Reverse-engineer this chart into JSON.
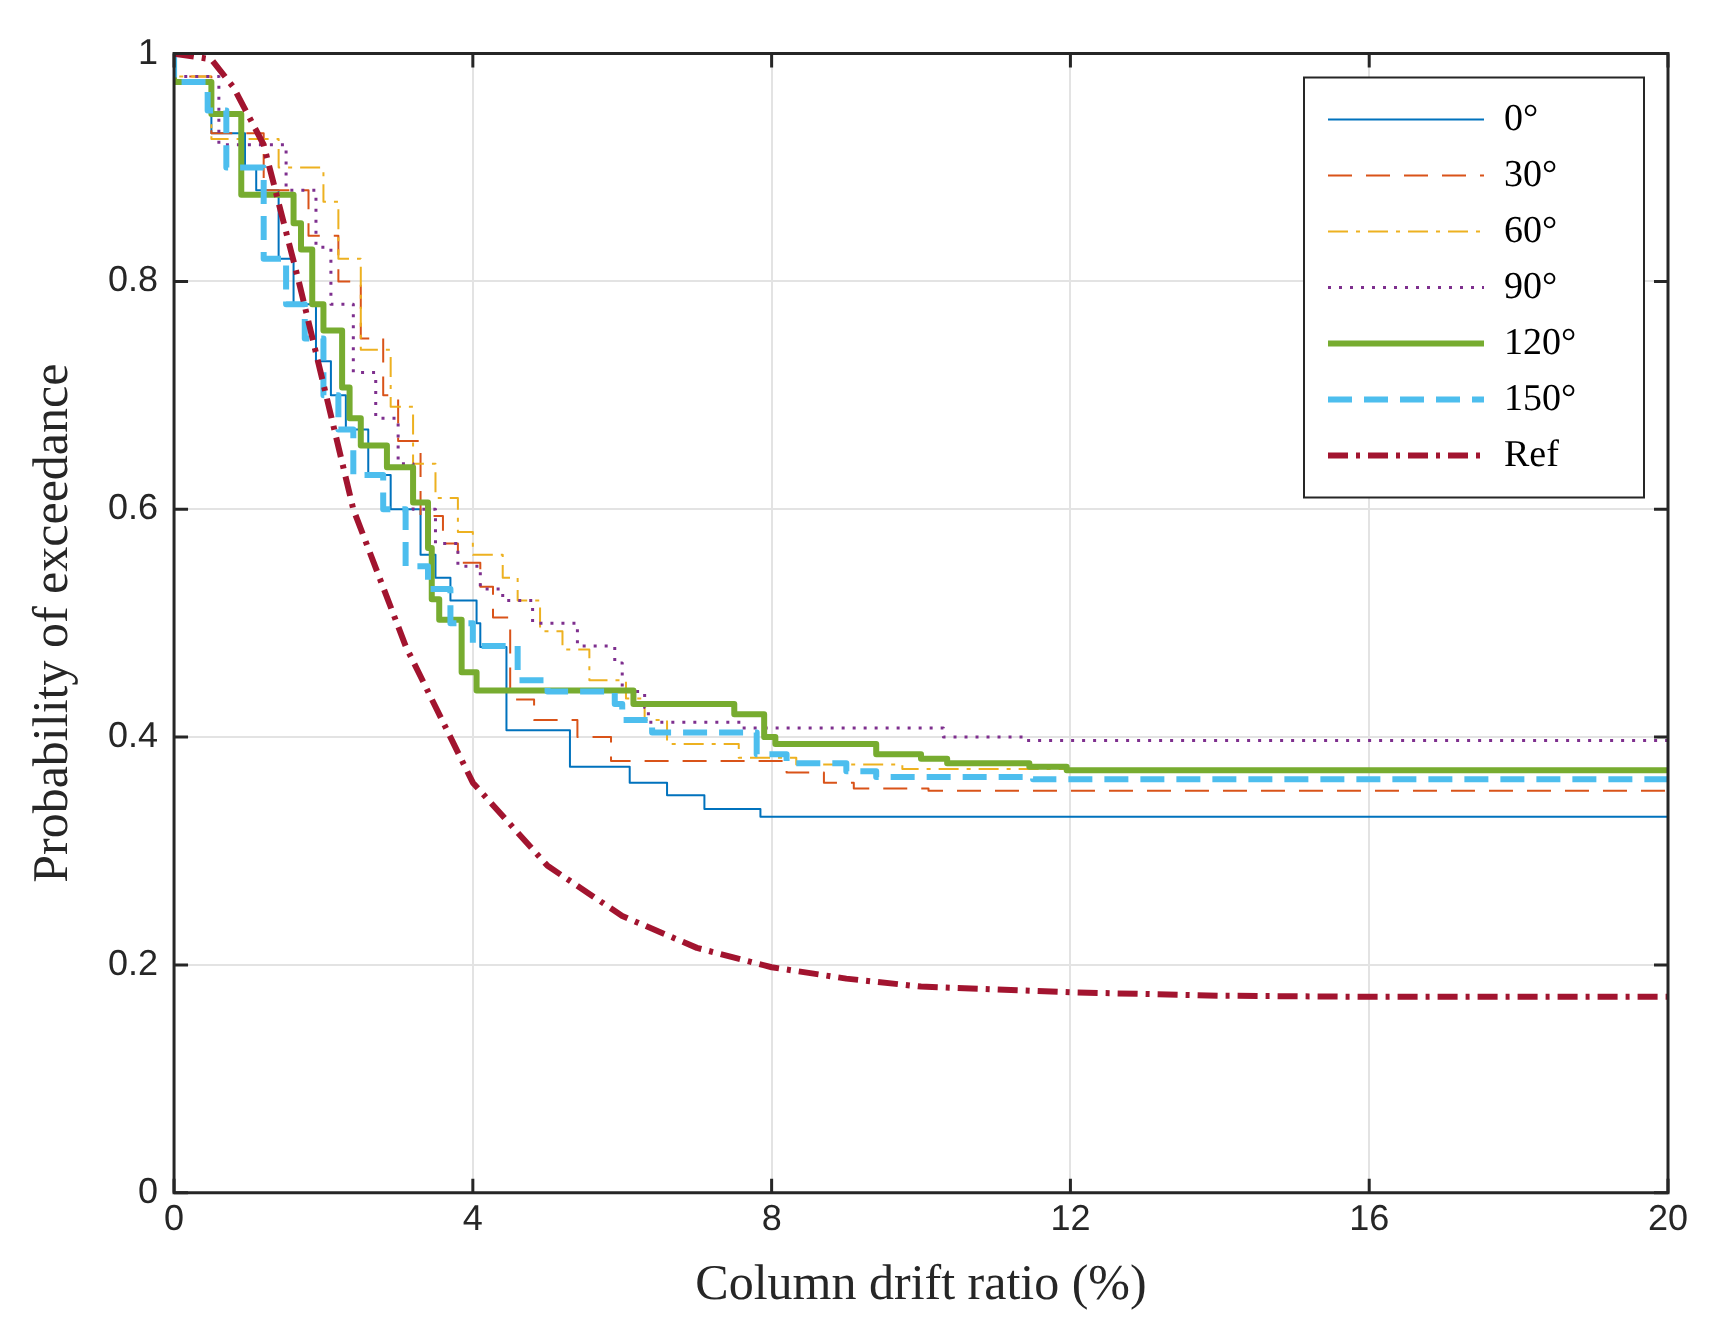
{
  "chart_data": {
    "type": "step",
    "xlabel": "Column drift ratio (%)",
    "ylabel": "Probability of exceedance",
    "xlim": [
      0,
      20
    ],
    "xticks": [
      0,
      4,
      8,
      12,
      16,
      20
    ],
    "ylim": [
      0,
      1
    ],
    "yticks": [
      0,
      0.2,
      0.4,
      0.6,
      0.8,
      1
    ],
    "grid": true,
    "legend": "top right",
    "marker": "none",
    "series": [
      {
        "name": "0°",
        "color": "#0072bd",
        "line_style": "solid",
        "x": [
          0,
          0.5,
          0.95,
          1.1,
          1.4,
          1.6,
          1.9,
          2.1,
          2.3,
          2.6,
          2.9,
          3.3,
          3.5,
          3.7,
          4.05,
          4.1,
          4.45,
          5.3,
          6.1,
          6.6,
          7.1,
          7.85,
          9.0,
          20
        ],
        "values": [
          1,
          0.975,
          0.93,
          0.9,
          0.88,
          0.82,
          0.78,
          0.73,
          0.7,
          0.67,
          0.63,
          0.6,
          0.56,
          0.54,
          0.52,
          0.5,
          0.479,
          0.406,
          0.374,
          0.36,
          0.349,
          0.337,
          0.33,
          0.33
        ]
      },
      {
        "name": "30°",
        "color": "#d95319",
        "line_style": "dashed",
        "x": [
          0,
          0.5,
          1.2,
          1.8,
          2.2,
          2.5,
          2.8,
          3.0,
          3.3,
          3.6,
          3.8,
          4.1,
          4.27,
          4.5,
          4.82,
          5.4,
          5.85,
          8.2,
          8.7,
          9.1,
          10.1,
          12,
          20
        ],
        "values": [
          1,
          0.98,
          0.93,
          0.88,
          0.84,
          0.8,
          0.75,
          0.7,
          0.66,
          0.594,
          0.57,
          0.553,
          0.532,
          0.505,
          0.433,
          0.415,
          0.4,
          0.379,
          0.369,
          0.36,
          0.355,
          0.353,
          0.353
        ]
      },
      {
        "name": "60°",
        "color": "#edb120",
        "line_style": "dashed",
        "x": [
          0,
          0.5,
          1.4,
          2.0,
          2.2,
          2.5,
          2.9,
          3.2,
          3.5,
          3.8,
          4.0,
          4.4,
          4.6,
          4.9,
          5.2,
          5.56,
          6.05,
          6.3,
          6.6,
          7.56,
          8.33,
          9.75,
          12,
          20
        ],
        "values": [
          1,
          0.98,
          0.925,
          0.9,
          0.87,
          0.82,
          0.74,
          0.69,
          0.64,
          0.61,
          0.58,
          0.56,
          0.54,
          0.52,
          0.493,
          0.477,
          0.45,
          0.434,
          0.415,
          0.394,
          0.382,
          0.376,
          0.372,
          0.372
        ]
      },
      {
        "name": "90°",
        "color": "#7e2f8e",
        "line_style": "dotted",
        "x": [
          0,
          0.6,
          1.5,
          1.9,
          2.1,
          2.4,
          2.7,
          3.0,
          3.2,
          3.5,
          3.8,
          4.1,
          4.4,
          4.8,
          5.4,
          5.9,
          6.0,
          6.3,
          6.35,
          7.6,
          10.3,
          11.4,
          13.3,
          20
        ],
        "values": [
          1,
          0.98,
          0.92,
          0.88,
          0.83,
          0.78,
          0.72,
          0.68,
          0.64,
          0.6,
          0.57,
          0.55,
          0.53,
          0.52,
          0.5,
          0.48,
          0.465,
          0.44,
          0.426,
          0.413,
          0.408,
          0.4,
          0.397,
          0.397
        ]
      },
      {
        "name": "120°",
        "color": "#77ac30",
        "line_style": "solid",
        "x": [
          0,
          0.5,
          0.9,
          1.6,
          1.7,
          1.85,
          2.0,
          2.25,
          2.35,
          2.5,
          2.85,
          3.2,
          3.4,
          3.45,
          3.55,
          3.85,
          4.05,
          6.15,
          7.5,
          7.9,
          8.05,
          9.4,
          10.0,
          10.35,
          11.45,
          11.95,
          14.6,
          20
        ],
        "values": [
          1,
          0.975,
          0.947,
          0.876,
          0.851,
          0.828,
          0.78,
          0.757,
          0.707,
          0.68,
          0.656,
          0.637,
          0.606,
          0.566,
          0.521,
          0.503,
          0.457,
          0.441,
          0.429,
          0.42,
          0.4,
          0.394,
          0.385,
          0.381,
          0.377,
          0.374,
          0.371,
          0.371
        ]
      },
      {
        "name": "150°",
        "color": "#4dbeee",
        "line_style": "dashed",
        "x": [
          0,
          0.45,
          0.7,
          1.2,
          1.5,
          1.75,
          2.0,
          2.2,
          2.4,
          2.8,
          3.1,
          3.4,
          3.7,
          4.0,
          4.6,
          5.0,
          5.4,
          5.9,
          6.0,
          6.4,
          7.8,
          8.2,
          9.0,
          9.4,
          11.5,
          14,
          20
        ],
        "values": [
          1,
          0.975,
          0.95,
          0.9,
          0.82,
          0.78,
          0.75,
          0.7,
          0.67,
          0.63,
          0.6,
          0.55,
          0.53,
          0.5,
          0.48,
          0.45,
          0.44,
          0.44,
          0.429,
          0.415,
          0.404,
          0.385,
          0.377,
          0.37,
          0.365,
          0.363,
          0.363
        ]
      },
      {
        "name": "Ref",
        "type": "line",
        "color": "#a2142f",
        "line_style": "dashed",
        "x": [
          0,
          0.5,
          0.8,
          1.2,
          1.67,
          2,
          2.4,
          3.1,
          4,
          5,
          6,
          7,
          8,
          9,
          10,
          12,
          14,
          16,
          20
        ],
        "values": [
          1,
          0.995,
          0.97,
          0.92,
          0.8,
          0.71,
          0.6,
          0.48,
          0.36,
          0.287,
          0.243,
          0.215,
          0.198,
          0.188,
          0.181,
          0.176,
          0.173,
          0.172,
          0.172
        ]
      }
    ]
  }
}
